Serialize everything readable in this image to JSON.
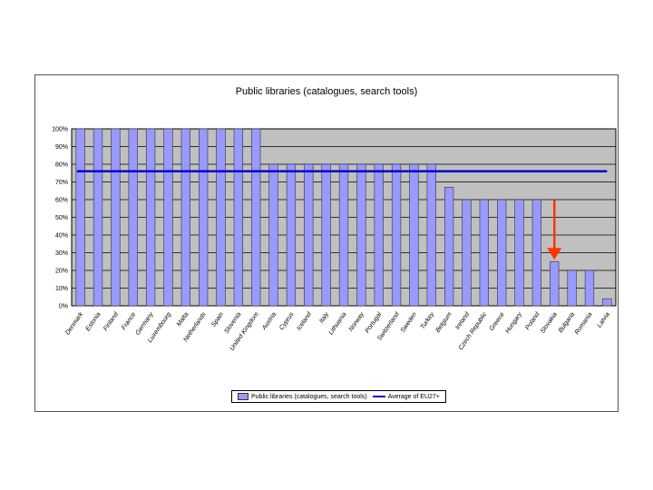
{
  "chart_data": {
    "type": "bar",
    "title": "Public libraries (catalogues, search tools)",
    "categories": [
      "Denmark",
      "Estonia",
      "Finland",
      "France",
      "Germany",
      "Luxembourg",
      "Malta",
      "Netherlands",
      "Spain",
      "Slovenia",
      "United Kingdom",
      "Austria",
      "Cyprus",
      "Iceland",
      "Italy",
      "Lithuania",
      "Norway",
      "Portugal",
      "Switzerland",
      "Sweden",
      "Turkey",
      "Belgium",
      "Ireland",
      "Czech Republic",
      "Greece",
      "Hungary",
      "Poland",
      "Slovakia",
      "Bulgaria",
      "Romania",
      "Latvia"
    ],
    "series": [
      {
        "name": "Public libraries (catalogues, search tools)",
        "values": [
          100,
          100,
          100,
          100,
          100,
          100,
          100,
          100,
          100,
          100,
          100,
          80,
          80,
          80,
          80,
          80,
          80,
          80,
          80,
          80,
          80,
          67,
          60,
          60,
          60,
          60,
          60,
          25,
          20,
          20,
          4
        ]
      },
      {
        "name": "Average of EU27+",
        "type": "line",
        "value": 76
      }
    ],
    "y_ticks": [
      "0%",
      "10%",
      "20%",
      "30%",
      "40%",
      "50%",
      "60%",
      "70%",
      "80%",
      "90%",
      "100%"
    ],
    "ylim": [
      0,
      100
    ],
    "highlight_category": "Slovakia",
    "colors": {
      "bar": "#9999ff",
      "bar_stroke": "#333333",
      "average_line": "#0000cc",
      "plot_bg": "#c0c0c0",
      "arrow": "#ff3300"
    }
  }
}
